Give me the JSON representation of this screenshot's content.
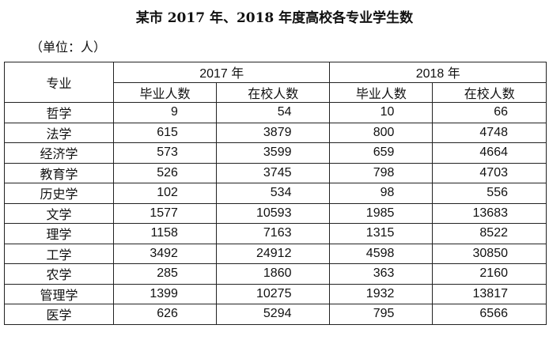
{
  "title": "某市 2017 年、2018 年度高校各专业学生数",
  "unit": "（单位：人）",
  "headers": {
    "major": "专业",
    "years": [
      "2017 年",
      "2018 年"
    ],
    "sub": [
      "毕业人数",
      "在校人数",
      "毕业人数",
      "在校人数"
    ]
  },
  "rows": [
    {
      "name": "哲学",
      "v": [
        "9",
        "54",
        "10",
        "66"
      ]
    },
    {
      "name": "法学",
      "v": [
        "615",
        "3879",
        "800",
        "4748"
      ]
    },
    {
      "name": "经济学",
      "v": [
        "573",
        "3599",
        "659",
        "4664"
      ]
    },
    {
      "name": "教育学",
      "v": [
        "526",
        "3745",
        "798",
        "4703"
      ]
    },
    {
      "name": "历史学",
      "v": [
        "102",
        "534",
        "98",
        "556"
      ]
    },
    {
      "name": "文学",
      "v": [
        "1577",
        "10593",
        "1985",
        "13683"
      ]
    },
    {
      "name": "理学",
      "v": [
        "1158",
        "7163",
        "1315",
        "8522"
      ]
    },
    {
      "name": "工学",
      "v": [
        "3492",
        "24912",
        "4598",
        "30850"
      ]
    },
    {
      "name": "农学",
      "v": [
        "285",
        "1860",
        "363",
        "2160"
      ]
    },
    {
      "name": "管理学",
      "v": [
        "1399",
        "10275",
        "1932",
        "13817"
      ]
    },
    {
      "name": "医学",
      "v": [
        "626",
        "5294",
        "795",
        "6566"
      ]
    }
  ]
}
